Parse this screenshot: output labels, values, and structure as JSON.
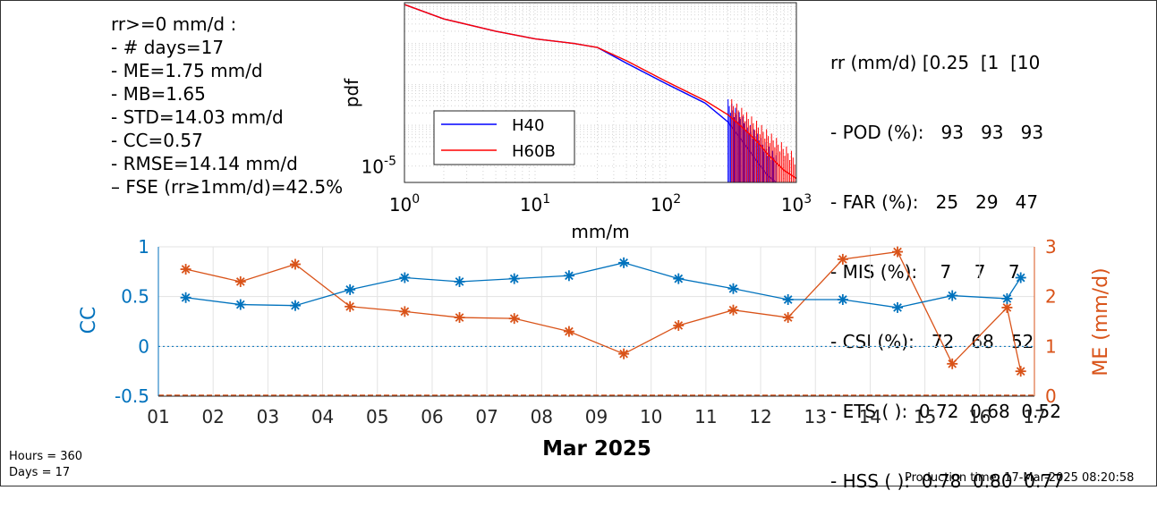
{
  "stats_left": [
    "rr>=0 mm/d :",
    "- # days=17",
    "- ME=1.75 mm/d",
    "- MB=1.65",
    "- STD=14.03 mm/d",
    "- CC=0.57",
    "- RMSE=14.14 mm/d",
    "– FSE (rr≥1mm/d)=42.5%"
  ],
  "stats_right": [
    "rr (mm/d) [0.25  [1  [10",
    "- POD (%):   93   93   93",
    "- FAR (%):   25   29   47",
    "- MIS (%):    7    7    7",
    "- CSI (%):   72   68   52",
    "- ETS ( ):  0.72  0.68  0.52",
    "- HSS ( ):  0.78  0.80  0.77"
  ],
  "footer": {
    "hours": "Hours = 360",
    "days": "Days = 17",
    "production": "Production time: 17-Mar-2025 08:20:58"
  },
  "colors": {
    "h40": "#0000ff",
    "h60b": "#ff0000",
    "cc": "#0072bd",
    "me": "#d95319",
    "grid": "#c8c8c8"
  },
  "chart_data": [
    {
      "type": "line",
      "xlabel": "mm/m",
      "ylabel": "pdf",
      "xscale": "log",
      "yscale": "log",
      "xlim": [
        1,
        1000
      ],
      "x_ticks": [
        "10^0",
        "10^1",
        "10^2",
        "10^3"
      ],
      "y_ticks": [
        "10^-5"
      ],
      "legend": [
        "H40",
        "H60B"
      ],
      "legend_location": "bottom-left",
      "series": [
        {
          "name": "H40",
          "x": [
            1,
            2,
            5,
            10,
            20,
            30,
            50,
            100,
            200,
            300,
            400,
            500,
            600,
            700
          ],
          "y": [
            0.09,
            0.04,
            0.02,
            0.013,
            0.01,
            0.008,
            0.0033,
            0.00105,
            0.00035,
            0.00012,
            3.5e-05,
            1.3e-05,
            6e-06,
            3e-06
          ]
        },
        {
          "name": "H60B",
          "x": [
            1,
            2,
            5,
            10,
            20,
            30,
            50,
            100,
            200,
            300,
            400,
            500,
            600,
            800,
            1000
          ],
          "y": [
            0.09,
            0.04,
            0.02,
            0.013,
            0.01,
            0.008,
            0.0038,
            0.0012,
            0.0004,
            0.00018,
            8e-05,
            4e-05,
            2e-05,
            8e-06,
            5e-06
          ]
        }
      ]
    },
    {
      "type": "line",
      "xlabel": "Mar 2025",
      "ylabel_left": "CC",
      "ylabel_right": "ME (mm/d)",
      "xlim": [
        1,
        17
      ],
      "ylim_left": [
        -0.5,
        1
      ],
      "ylim_right": [
        0,
        3
      ],
      "x_ticks": [
        "01",
        "02",
        "03",
        "04",
        "05",
        "06",
        "07",
        "08",
        "09",
        "10",
        "11",
        "12",
        "13",
        "14",
        "15",
        "16",
        "17"
      ],
      "y_ticks_left": [
        "-0.5",
        "0",
        "0.5",
        "1"
      ],
      "y_ticks_right": [
        "0",
        "1",
        "2",
        "3"
      ],
      "grid": true,
      "series": [
        {
          "name": "CC",
          "axis": "left",
          "x": [
            1.5,
            2.5,
            3.5,
            4.5,
            5.5,
            6.5,
            7.5,
            8.5,
            9.5,
            10.5,
            11.5,
            12.5,
            13.5,
            14.5,
            15.5,
            16.5,
            16.75
          ],
          "y": [
            0.49,
            0.42,
            0.41,
            0.57,
            0.69,
            0.65,
            0.68,
            0.71,
            0.84,
            0.68,
            0.58,
            0.47,
            0.47,
            0.39,
            0.51,
            0.48,
            0.69
          ]
        },
        {
          "name": "ME",
          "axis": "right",
          "x": [
            1.5,
            2.5,
            3.5,
            4.5,
            5.5,
            6.5,
            7.5,
            8.5,
            9.5,
            10.5,
            11.5,
            12.5,
            13.5,
            14.5,
            15.5,
            16.5,
            16.75
          ],
          "y": [
            2.55,
            2.3,
            2.65,
            1.8,
            1.7,
            1.58,
            1.56,
            1.3,
            0.85,
            1.42,
            1.73,
            1.58,
            2.75,
            2.9,
            0.65,
            1.78,
            0.5
          ]
        }
      ]
    }
  ]
}
